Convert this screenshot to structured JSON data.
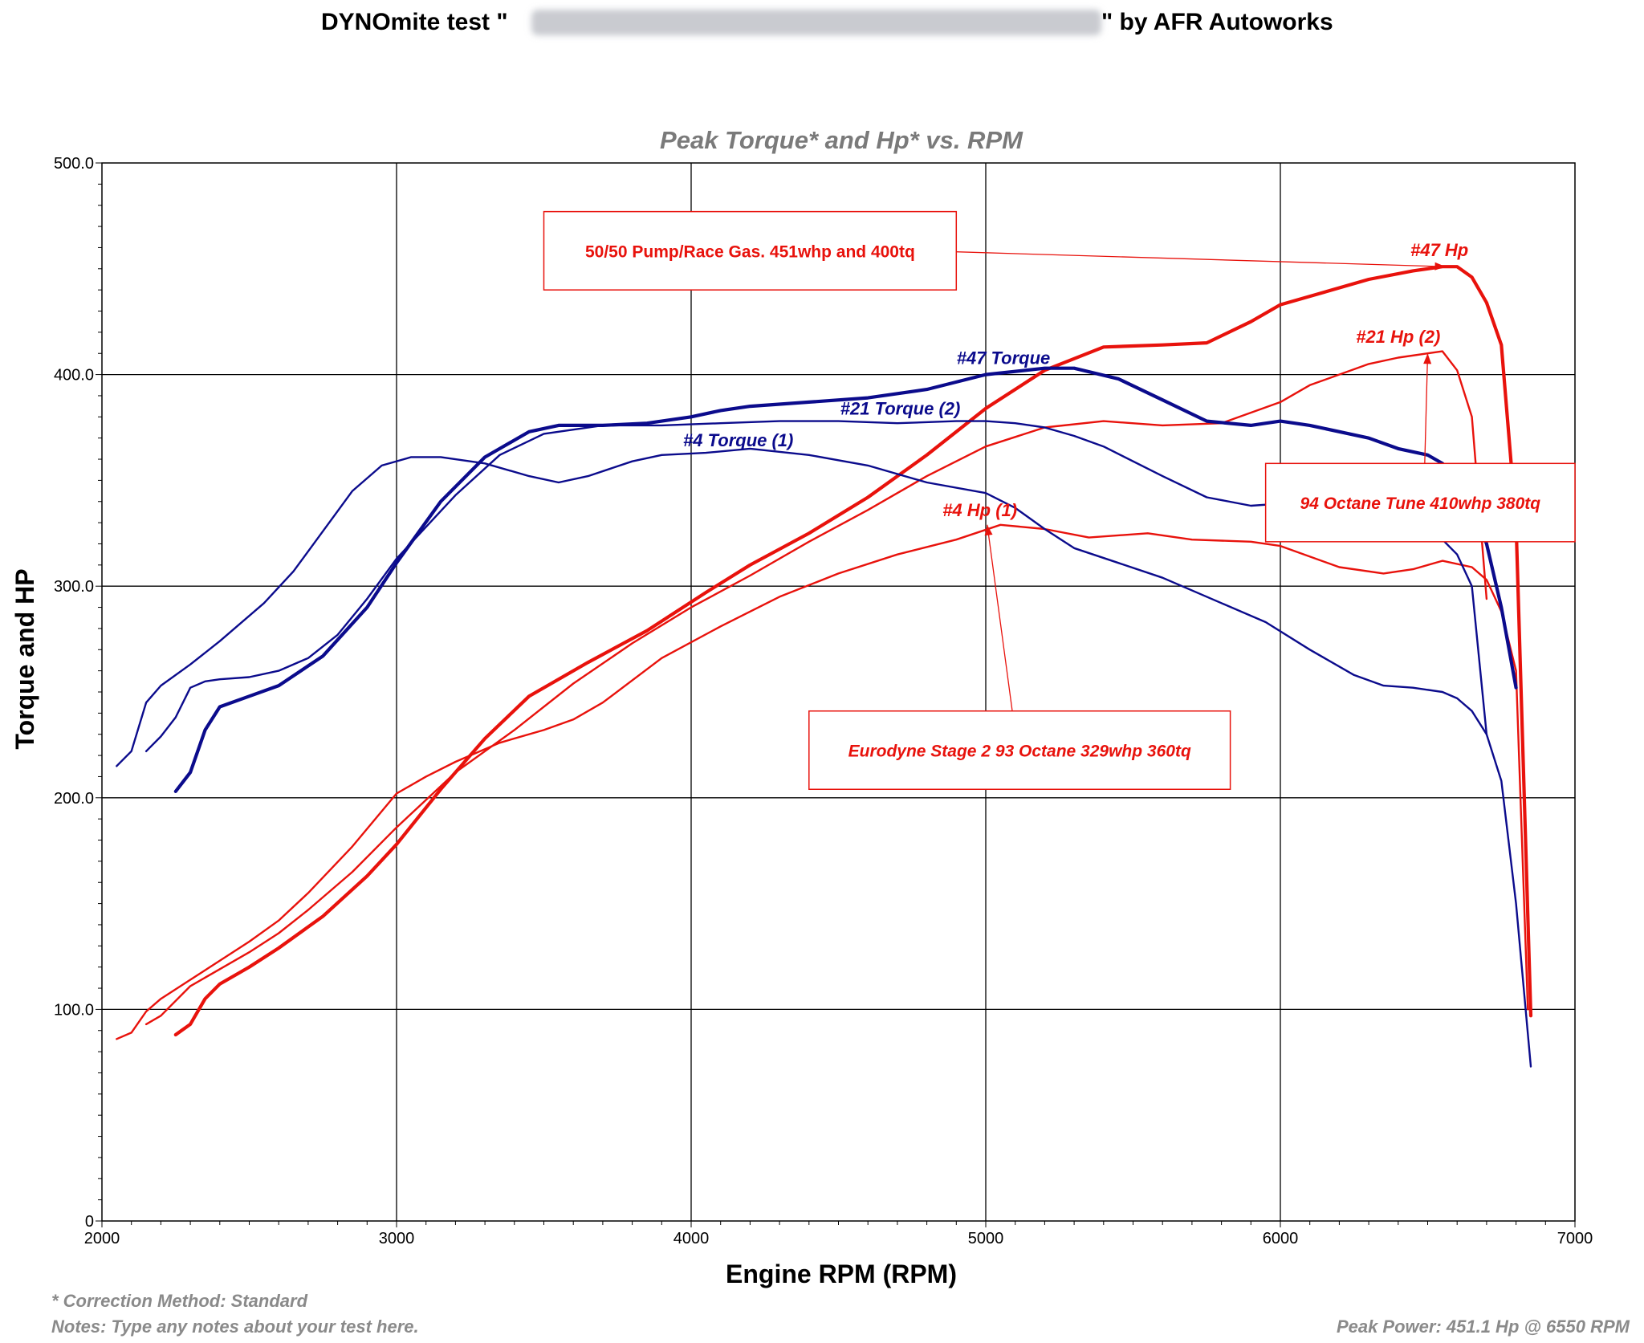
{
  "header": {
    "title_prefix": "DYNOmite test \"",
    "title_suffix": "\" by AFR Autoworks"
  },
  "chart_data": {
    "type": "line",
    "subtitle": "Peak Torque* and Hp* vs. RPM",
    "xlabel": "Engine RPM (RPM)",
    "ylabel": "Torque and HP",
    "xlim": [
      2000,
      7000
    ],
    "ylim": [
      0,
      500
    ],
    "grid": true,
    "x_ticks": [
      2000,
      3000,
      4000,
      5000,
      6000,
      7000
    ],
    "y_ticks": [
      0,
      100,
      200,
      300,
      400,
      500
    ],
    "y_tick_labels": [
      "0",
      "100.0",
      "200.0",
      "300.0",
      "400.0",
      "500.0"
    ],
    "series": [
      {
        "name": "#47 Hp",
        "color": "#e8120c",
        "width": "thick",
        "x": [
          2250,
          2300,
          2350,
          2400,
          2500,
          2600,
          2750,
          2900,
          3000,
          3150,
          3300,
          3450,
          3650,
          3850,
          4050,
          4200,
          4400,
          4600,
          4800,
          5000,
          5200,
          5400,
          5600,
          5750,
          5900,
          6000,
          6100,
          6300,
          6450,
          6550,
          6600,
          6650,
          6700,
          6750,
          6800,
          6850
        ],
        "y": [
          88,
          93,
          105,
          112,
          120,
          129,
          144,
          163,
          178,
          204,
          228,
          248,
          264,
          279,
          297,
          310,
          325,
          342,
          362,
          384,
          402,
          413,
          414,
          415,
          425,
          433,
          437,
          445,
          449,
          451,
          451,
          446,
          434,
          414,
          330,
          97
        ]
      },
      {
        "name": "#21 Hp (2)",
        "color": "#e8120c",
        "width": "thin",
        "x": [
          2150,
          2200,
          2300,
          2400,
          2500,
          2600,
          2700,
          2850,
          3000,
          3200,
          3400,
          3600,
          3800,
          4000,
          4200,
          4400,
          4600,
          4800,
          5000,
          5200,
          5400,
          5600,
          5800,
          6000,
          6100,
          6300,
          6400,
          6500,
          6550,
          6600,
          6650,
          6700
        ],
        "y": [
          93,
          97,
          111,
          119,
          127,
          136,
          147,
          165,
          186,
          212,
          232,
          254,
          273,
          290,
          305,
          321,
          336,
          352,
          366,
          375,
          378,
          376,
          377,
          387,
          395,
          405,
          408,
          410,
          411,
          402,
          380,
          294
        ]
      },
      {
        "name": "#4 Hp (1)",
        "color": "#e8120c",
        "width": "thin",
        "x": [
          2050,
          2100,
          2150,
          2200,
          2300,
          2400,
          2500,
          2600,
          2700,
          2850,
          3000,
          3100,
          3200,
          3350,
          3500,
          3600,
          3700,
          3900,
          4100,
          4300,
          4500,
          4700,
          4900,
          5050,
          5200,
          5350,
          5550,
          5700,
          5900,
          6000,
          6200,
          6350,
          6450,
          6550,
          6650,
          6700,
          6750,
          6800,
          6840
        ],
        "y": [
          86,
          89,
          99,
          105,
          114,
          123,
          132,
          142,
          155,
          177,
          202,
          210,
          217,
          226,
          232,
          237,
          245,
          266,
          281,
          295,
          306,
          315,
          322,
          329,
          327,
          323,
          325,
          322,
          321,
          319,
          309,
          306,
          308,
          312,
          309,
          303,
          288,
          260,
          100
        ]
      },
      {
        "name": "#47 Torque",
        "color": "#0b0b8c",
        "width": "thick",
        "x": [
          2250,
          2300,
          2350,
          2400,
          2500,
          2600,
          2750,
          2900,
          3000,
          3150,
          3300,
          3450,
          3550,
          3700,
          3850,
          4000,
          4100,
          4200,
          4400,
          4600,
          4800,
          5000,
          5200,
          5300,
          5450,
          5600,
          5750,
          5900,
          6000,
          6100,
          6300,
          6400,
          6500,
          6550,
          6600,
          6650,
          6700,
          6750,
          6800
        ],
        "y": [
          203,
          212,
          232,
          243,
          248,
          253,
          267,
          290,
          311,
          340,
          361,
          373,
          376,
          376,
          377,
          380,
          383,
          385,
          387,
          389,
          393,
          400,
          403,
          403,
          398,
          388,
          378,
          376,
          378,
          376,
          370,
          365,
          362,
          358,
          352,
          340,
          320,
          290,
          252
        ]
      },
      {
        "name": "#21 Torque (2)",
        "color": "#0b0b8c",
        "width": "thin",
        "x": [
          2150,
          2200,
          2250,
          2300,
          2350,
          2400,
          2500,
          2600,
          2700,
          2800,
          2900,
          3000,
          3200,
          3350,
          3500,
          3700,
          3900,
          4100,
          4300,
          4500,
          4700,
          4900,
          5000,
          5100,
          5200,
          5300,
          5400,
          5600,
          5750,
          5900,
          6000,
          6100,
          6250,
          6350,
          6450,
          6500,
          6550,
          6600,
          6650,
          6700
        ],
        "y": [
          222,
          229,
          238,
          252,
          255,
          256,
          257,
          260,
          266,
          277,
          294,
          313,
          343,
          362,
          372,
          376,
          376,
          377,
          378,
          378,
          377,
          378,
          378,
          377,
          375,
          371,
          366,
          352,
          342,
          338,
          339,
          341,
          338,
          334,
          330,
          327,
          322,
          315,
          300,
          230
        ]
      },
      {
        "name": "#4 Torque (1)",
        "color": "#0b0b8c",
        "width": "thin",
        "x": [
          2050,
          2100,
          2150,
          2200,
          2300,
          2400,
          2550,
          2650,
          2750,
          2850,
          2950,
          3050,
          3150,
          3300,
          3450,
          3550,
          3650,
          3800,
          3900,
          4050,
          4200,
          4400,
          4600,
          4800,
          5000,
          5100,
          5200,
          5300,
          5450,
          5600,
          5800,
          5950,
          6100,
          6250,
          6350,
          6450,
          6550,
          6600,
          6650,
          6700,
          6750,
          6800,
          6850
        ],
        "y": [
          215,
          222,
          245,
          253,
          263,
          274,
          292,
          307,
          326,
          345,
          357,
          361,
          361,
          358,
          352,
          349,
          352,
          359,
          362,
          363,
          365,
          362,
          357,
          349,
          344,
          337,
          327,
          318,
          311,
          304,
          292,
          283,
          270,
          258,
          253,
          252,
          250,
          247,
          241,
          230,
          208,
          150,
          73
        ]
      }
    ],
    "series_labels": [
      {
        "text": "#47 Hp",
        "x": 6540,
        "y": 456,
        "color": "#e8120c",
        "italic": false
      },
      {
        "text": "#21 Hp (2)",
        "x": 6400,
        "y": 415,
        "color": "#e8120c",
        "italic": true
      },
      {
        "text": "#4 Hp (1)",
        "x": 4980,
        "y": 333,
        "color": "#e8120c",
        "italic": true
      },
      {
        "text": "#47 Torque",
        "x": 5060,
        "y": 405,
        "color": "#0b0b8c",
        "italic": false
      },
      {
        "text": "#21 Torque (2)",
        "x": 4710,
        "y": 381,
        "color": "#0b0b8c",
        "italic": true
      },
      {
        "text": "#4 Torque (1)",
        "x": 4160,
        "y": 366,
        "color": "#0b0b8c",
        "italic": true
      }
    ],
    "callouts": [
      {
        "text": "50/50 Pump/Race Gas. 451whp and 400tq",
        "italic": false,
        "box": {
          "x0": 3500,
          "x1": 4900,
          "y0": 477,
          "y1": 440
        },
        "anchor": {
          "x": 4900,
          "y": 458
        },
        "target": {
          "x": 6560,
          "y": 451
        }
      },
      {
        "text": "94 Octane Tune 410whp 380tq",
        "italic": true,
        "box": {
          "x0": 5950,
          "x1": 7000,
          "y0": 358,
          "y1": 321
        },
        "anchor": {
          "x": 6490,
          "y": 358
        },
        "target": {
          "x": 6500,
          "y": 410
        }
      },
      {
        "text": "Eurodyne Stage 2 93 Octane 329whp 360tq",
        "italic": true,
        "box": {
          "x0": 4400,
          "x1": 5830,
          "y0": 241,
          "y1": 204
        },
        "anchor": {
          "x": 5090,
          "y": 241
        },
        "target": {
          "x": 5005,
          "y": 329
        }
      }
    ]
  },
  "footer": {
    "correction": "* Correction Method: Standard",
    "notes": "Notes: Type any notes about your test here.",
    "peak_power": "Peak Power: 451.1 Hp @ 6550 RPM"
  }
}
